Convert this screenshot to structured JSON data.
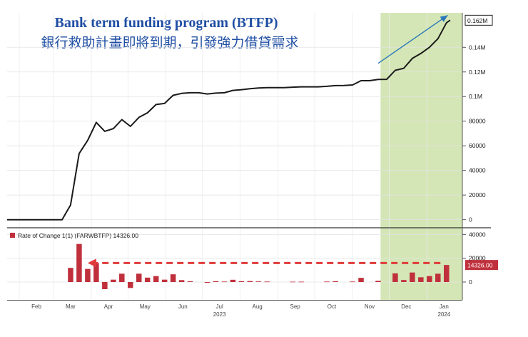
{
  "chart_data": [
    {
      "type": "line",
      "title": "Bank term funding program (BTFP)",
      "subtitle": "銀行救助計畫即將到期，引發強力借貸需求",
      "y_ticks": [
        {
          "value": 0,
          "label": "0"
        },
        {
          "value": 20000,
          "label": "20000"
        },
        {
          "value": 40000,
          "label": "40000"
        },
        {
          "value": 60000,
          "label": "60000"
        },
        {
          "value": 80000,
          "label": "80000"
        },
        {
          "value": 100000,
          "label": "0.1M"
        },
        {
          "value": 120000,
          "label": "0.12M"
        },
        {
          "value": 140000,
          "label": "0.14M"
        }
      ],
      "ylim": [
        -6000,
        168000
      ],
      "last_value": 162000,
      "last_value_label": "0.162M",
      "xlim": [
        "2023-01-22",
        "2024-01-30"
      ],
      "highlight_range": [
        "2023-11-24",
        "2024-01-30"
      ],
      "highlight_color": "#d4e6b5",
      "line_color": "#1a1a1a",
      "trend_arrow": {
        "from": [
          "2023-11-22",
          127000
        ],
        "to": [
          "2024-01-18",
          166000
        ],
        "color": "#2a78b8"
      },
      "points": [
        [
          "2023-01-22",
          0
        ],
        [
          "2023-03-08",
          0
        ],
        [
          "2023-03-15",
          11900
        ],
        [
          "2023-03-22",
          53700
        ],
        [
          "2023-03-29",
          64400
        ],
        [
          "2023-04-05",
          79000
        ],
        [
          "2023-04-12",
          71800
        ],
        [
          "2023-04-19",
          73900
        ],
        [
          "2023-04-26",
          81300
        ],
        [
          "2023-05-03",
          75800
        ],
        [
          "2023-05-10",
          83100
        ],
        [
          "2023-05-17",
          86800
        ],
        [
          "2023-05-24",
          93500
        ],
        [
          "2023-05-31",
          94400
        ],
        [
          "2023-06-07",
          101000
        ],
        [
          "2023-06-14",
          102600
        ],
        [
          "2023-06-21",
          103100
        ],
        [
          "2023-06-28",
          103100
        ],
        [
          "2023-07-05",
          102100
        ],
        [
          "2023-07-12",
          102800
        ],
        [
          "2023-07-19",
          103100
        ],
        [
          "2023-07-26",
          105000
        ],
        [
          "2023-08-02",
          105600
        ],
        [
          "2023-08-09",
          106400
        ],
        [
          "2023-08-16",
          106900
        ],
        [
          "2023-08-23",
          107300
        ],
        [
          "2023-08-30",
          107300
        ],
        [
          "2023-09-06",
          107300
        ],
        [
          "2023-09-13",
          107600
        ],
        [
          "2023-09-20",
          107900
        ],
        [
          "2023-09-27",
          107900
        ],
        [
          "2023-10-04",
          107900
        ],
        [
          "2023-10-11",
          108300
        ],
        [
          "2023-10-18",
          108900
        ],
        [
          "2023-10-25",
          109000
        ],
        [
          "2023-11-01",
          109400
        ],
        [
          "2023-11-08",
          112900
        ],
        [
          "2023-11-15",
          112900
        ],
        [
          "2023-11-22",
          113900
        ],
        [
          "2023-11-29",
          114000
        ],
        [
          "2023-12-06",
          121300
        ],
        [
          "2023-12-13",
          123000
        ],
        [
          "2023-12-20",
          131000
        ],
        [
          "2023-12-27",
          135000
        ],
        [
          "2024-01-03",
          140000
        ],
        [
          "2024-01-10",
          147000
        ],
        [
          "2024-01-17",
          160000
        ],
        [
          "2024-01-20",
          162000
        ]
      ]
    },
    {
      "type": "bar",
      "legend": "Rate of Change 1(1) (FARWBTFP) 14326.00",
      "legend_color": "#c0303c",
      "y_ticks": [
        {
          "value": 0,
          "label": "0"
        },
        {
          "value": 20000,
          "label": "20000"
        },
        {
          "value": 40000,
          "label": "40000"
        }
      ],
      "ylim": [
        -15000,
        45000
      ],
      "last_value": 14326,
      "last_value_label": "14326.00",
      "bar_color": "#c0303c",
      "bars": [
        [
          "2023-03-15",
          11900
        ],
        [
          "2023-03-22",
          32000
        ],
        [
          "2023-03-29",
          11000
        ],
        [
          "2023-04-05",
          16000
        ],
        [
          "2023-04-12",
          -6000
        ],
        [
          "2023-04-19",
          2000
        ],
        [
          "2023-04-26",
          7000
        ],
        [
          "2023-05-03",
          -5000
        ],
        [
          "2023-05-10",
          7000
        ],
        [
          "2023-05-17",
          3700
        ],
        [
          "2023-05-24",
          5000
        ],
        [
          "2023-05-31",
          2000
        ],
        [
          "2023-06-07",
          6500
        ],
        [
          "2023-06-14",
          1600
        ],
        [
          "2023-06-21",
          600
        ],
        [
          "2023-07-05",
          -600
        ],
        [
          "2023-07-12",
          700
        ],
        [
          "2023-07-19",
          400
        ],
        [
          "2023-07-26",
          1900
        ],
        [
          "2023-08-02",
          700
        ],
        [
          "2023-08-09",
          800
        ],
        [
          "2023-08-16",
          500
        ],
        [
          "2023-08-23",
          400
        ],
        [
          "2023-09-13",
          300
        ],
        [
          "2023-09-20",
          300
        ],
        [
          "2023-10-11",
          400
        ],
        [
          "2023-10-18",
          600
        ],
        [
          "2023-11-01",
          400
        ],
        [
          "2023-11-08",
          3500
        ],
        [
          "2023-11-22",
          1000
        ],
        [
          "2023-12-06",
          7300
        ],
        [
          "2023-12-13",
          1700
        ],
        [
          "2023-12-20",
          8000
        ],
        [
          "2023-12-27",
          4000
        ],
        [
          "2024-01-03",
          5000
        ],
        [
          "2024-01-10",
          7000
        ],
        [
          "2024-01-17",
          14326
        ]
      ],
      "dashed_arrow": {
        "from": [
          "2024-01-12",
          16000
        ],
        "to": [
          "2023-03-29",
          16000
        ],
        "color": "#e03a3a"
      }
    }
  ],
  "x_axis": {
    "month_labels": [
      {
        "date": "2023-02-15",
        "label": "Feb"
      },
      {
        "date": "2023-03-15",
        "label": "Mar"
      },
      {
        "date": "2023-04-15",
        "label": "Apr"
      },
      {
        "date": "2023-05-15",
        "label": "May"
      },
      {
        "date": "2023-06-15",
        "label": "Jun"
      },
      {
        "date": "2023-07-15",
        "label": "Jul"
      },
      {
        "date": "2023-08-15",
        "label": "Aug"
      },
      {
        "date": "2023-09-15",
        "label": "Sep"
      },
      {
        "date": "2023-10-15",
        "label": "Oct"
      },
      {
        "date": "2023-11-15",
        "label": "Nov"
      },
      {
        "date": "2023-12-15",
        "label": "Dec"
      },
      {
        "date": "2024-01-15",
        "label": "Jan"
      }
    ],
    "year_labels": [
      {
        "date": "2023-07-15",
        "label": "2023"
      },
      {
        "date": "2024-01-15",
        "label": "2024"
      }
    ],
    "month_starts": [
      "2023-02-01",
      "2023-03-01",
      "2023-04-01",
      "2023-05-01",
      "2023-06-01",
      "2023-07-01",
      "2023-08-01",
      "2023-09-01",
      "2023-10-01",
      "2023-11-01",
      "2023-12-01",
      "2024-01-01"
    ]
  }
}
